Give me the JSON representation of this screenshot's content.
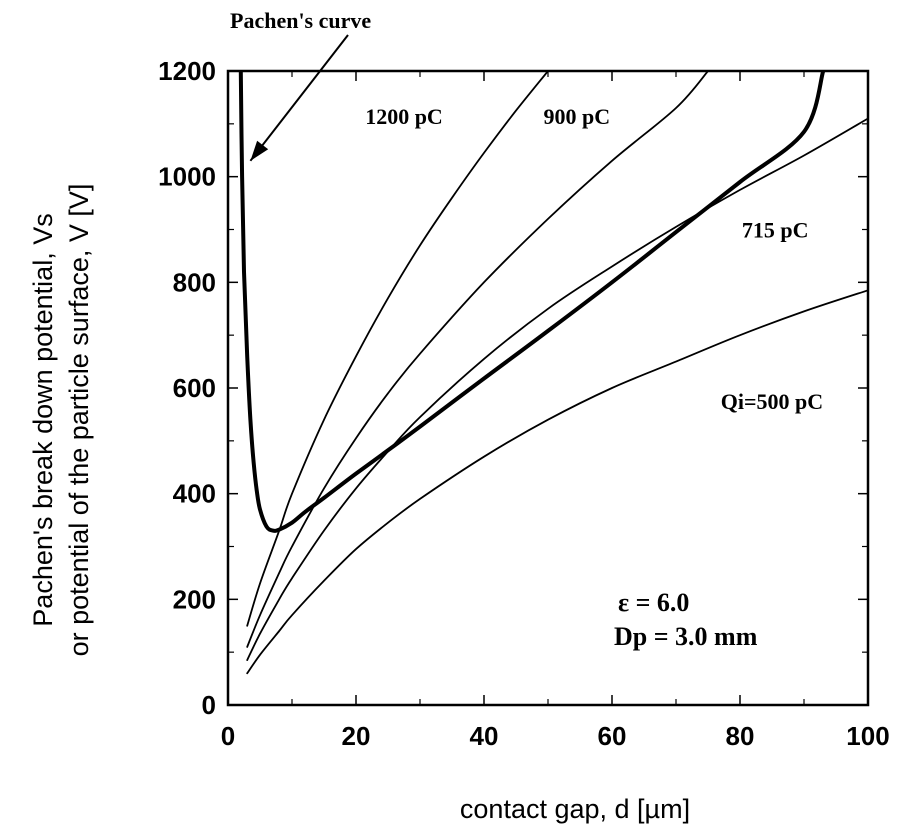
{
  "chart_data": {
    "type": "line",
    "xlabel": "contact gap, d  [µm]",
    "ylabel_line1": "Pachen's break down potential, Vs",
    "ylabel_line2": "or potential of the particle surface, V  [V]",
    "xlim": [
      0,
      100
    ],
    "ylim": [
      0,
      1200
    ],
    "xticks": [
      0,
      20,
      40,
      60,
      80,
      100
    ],
    "yticks": [
      0,
      200,
      400,
      600,
      800,
      1000,
      1200
    ],
    "grid": false,
    "annotations": {
      "pachen_label": "Pachen's curve",
      "epsilon": "ε  =  6.0",
      "dp": "Dp =  3.0  mm"
    },
    "series": [
      {
        "name": "Pachen's curve",
        "style": "bold",
        "x": [
          2.0,
          2.2,
          2.5,
          3.0,
          3.5,
          4.0,
          4.5,
          5.0,
          6.0,
          7.0,
          8.0,
          10.0,
          12.0,
          15.0,
          20.0,
          25.0,
          30.0,
          40.0,
          50.0,
          60.0,
          70.0,
          80.0,
          90.0,
          93.0
        ],
        "y": [
          1200,
          1000,
          820,
          660,
          540,
          460,
          405,
          370,
          338,
          330,
          332,
          345,
          365,
          392,
          438,
          482,
          527,
          618,
          708,
          800,
          895,
          990,
          1085,
          1200
        ]
      },
      {
        "name": "1200 pC",
        "x": [
          3,
          5,
          8,
          10,
          15,
          20,
          25,
          30,
          35,
          40,
          45,
          50
        ],
        "y": [
          150,
          230,
          330,
          400,
          540,
          660,
          770,
          870,
          960,
          1045,
          1125,
          1200
        ]
      },
      {
        "name": "900 pC",
        "x": [
          3,
          5,
          8,
          10,
          15,
          20,
          25,
          30,
          40,
          50,
          60,
          70,
          75
        ],
        "y": [
          110,
          170,
          250,
          300,
          410,
          505,
          590,
          665,
          800,
          920,
          1030,
          1130,
          1200
        ]
      },
      {
        "name": "715 pC",
        "x": [
          3,
          5,
          8,
          10,
          15,
          20,
          25,
          30,
          40,
          50,
          60,
          70,
          80,
          90,
          100
        ],
        "y": [
          85,
          135,
          200,
          240,
          330,
          410,
          480,
          545,
          655,
          750,
          830,
          905,
          975,
          1040,
          1110
        ]
      },
      {
        "name": "Qi=500 pC",
        "x": [
          3,
          5,
          8,
          10,
          15,
          20,
          25,
          30,
          40,
          50,
          60,
          70,
          80,
          90,
          100
        ],
        "y": [
          60,
          95,
          140,
          170,
          235,
          295,
          345,
          390,
          470,
          540,
          600,
          650,
          700,
          745,
          785
        ]
      }
    ],
    "series_labels": [
      {
        "text": "1200  pC",
        "x": 27.5,
        "y": 1100
      },
      {
        "text": "900  pC",
        "x": 54.5,
        "y": 1100
      },
      {
        "text": "715  pC",
        "x": 85.5,
        "y": 885
      },
      {
        "text": "Qi=500  pC",
        "x": 85,
        "y": 560
      }
    ]
  }
}
